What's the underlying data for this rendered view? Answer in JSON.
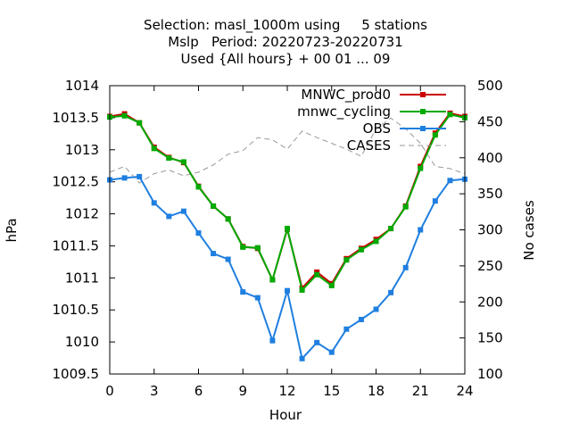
{
  "chart_data": {
    "type": "line",
    "title_lines": [
      "Selection: masl_1000m using     5 stations",
      "Mslp   Period: 20220723-20220731",
      "Used {All hours} + 00 01 ... 09"
    ],
    "xlabel": "Hour",
    "ylabel": "hPa",
    "y2label": "No cases",
    "xlim": [
      0,
      24
    ],
    "ylim": [
      1009.5,
      1014
    ],
    "y2lim": [
      100,
      500
    ],
    "x_ticks": [
      "0",
      "3",
      "6",
      "9",
      "12",
      "15",
      "18",
      "21",
      "24"
    ],
    "y_ticks": [
      "1009.5",
      "1010",
      "1010.5",
      "1011",
      "1011.5",
      "1012",
      "1012.5",
      "1013",
      "1013.5",
      "1014"
    ],
    "y2_ticks": [
      "100",
      "150",
      "200",
      "250",
      "300",
      "350",
      "400",
      "450",
      "500"
    ],
    "legend_position": "top-right",
    "x": [
      0,
      1,
      2,
      3,
      4,
      5,
      6,
      7,
      8,
      9,
      10,
      11,
      12,
      13,
      14,
      15,
      16,
      17,
      18,
      19,
      20,
      21,
      22,
      23,
      24
    ],
    "series": [
      {
        "name": "MNWC_prod0",
        "axis": "left",
        "color": "#cc0000",
        "marker": "square",
        "values": [
          1013.52,
          1013.56,
          1013.42,
          1013.04,
          1012.88,
          1012.8,
          1012.43,
          1012.12,
          1011.92,
          1011.49,
          1011.46,
          1010.97,
          1011.76,
          1010.84,
          1011.09,
          1010.91,
          1011.3,
          1011.46,
          1011.6,
          1011.77,
          1012.12,
          1012.74,
          1013.26,
          1013.57,
          1013.52
        ]
      },
      {
        "name": "mnwc_cycling",
        "axis": "left",
        "color": "#00aa00",
        "marker": "square",
        "values": [
          1013.51,
          1013.53,
          1013.42,
          1013.02,
          1012.87,
          1012.81,
          1012.42,
          1012.12,
          1011.92,
          1011.48,
          1011.47,
          1010.97,
          1011.77,
          1010.81,
          1011.05,
          1010.88,
          1011.28,
          1011.44,
          1011.57,
          1011.77,
          1012.11,
          1012.71,
          1013.23,
          1013.55,
          1013.5
        ]
      },
      {
        "name": "OBS",
        "axis": "left",
        "color": "#1f7fe0",
        "marker": "square",
        "values": [
          1012.53,
          1012.56,
          1012.58,
          1012.17,
          1011.96,
          1012.04,
          1011.7,
          1011.38,
          1011.29,
          1010.78,
          1010.69,
          1010.02,
          1010.8,
          1009.74,
          1009.99,
          1009.84,
          1010.2,
          1010.35,
          1010.51,
          1010.77,
          1011.16,
          1011.75,
          1012.2,
          1012.52,
          1012.54
        ]
      },
      {
        "name": "CASES",
        "axis": "right",
        "color": "#999999",
        "marker": "none",
        "dashed": true,
        "values": [
          380,
          388,
          365,
          378,
          383,
          375,
          380,
          390,
          405,
          410,
          428,
          425,
          412,
          437,
          428,
          420,
          412,
          402,
          440,
          455,
          440,
          420,
          388,
          385,
          378
        ]
      }
    ]
  }
}
